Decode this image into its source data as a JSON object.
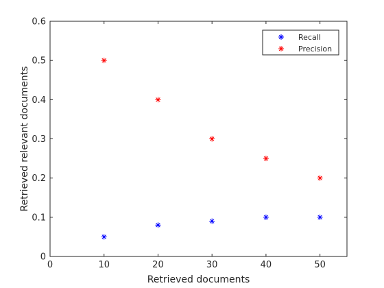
{
  "chart_data": {
    "type": "scatter",
    "title": "",
    "xlabel": "Retrieved documents",
    "ylabel": "Retrieved relevant documents",
    "xlim": [
      0,
      55
    ],
    "ylim": [
      0,
      0.6
    ],
    "xticks": [
      0,
      10,
      20,
      30,
      40,
      50
    ],
    "yticks": [
      0,
      0.1,
      0.2,
      0.3,
      0.4,
      0.5,
      0.6
    ],
    "x_tick_labels": [
      "0",
      "10",
      "20",
      "30",
      "40",
      "50"
    ],
    "y_tick_labels": [
      "0",
      "0.1",
      "0.2",
      "0.3",
      "0.4",
      "0.5",
      "0.6"
    ],
    "grid": false,
    "legend_position": "top-right",
    "marker": "*",
    "series": [
      {
        "name": "Recall",
        "color": "#0000ff",
        "x": [
          10,
          20,
          30,
          40,
          50
        ],
        "y": [
          0.05,
          0.08,
          0.09,
          0.1,
          0.1
        ]
      },
      {
        "name": "Precision",
        "color": "#ff0000",
        "x": [
          10,
          20,
          30,
          40,
          50
        ],
        "y": [
          0.5,
          0.4,
          0.3,
          0.25,
          0.2
        ]
      }
    ]
  }
}
